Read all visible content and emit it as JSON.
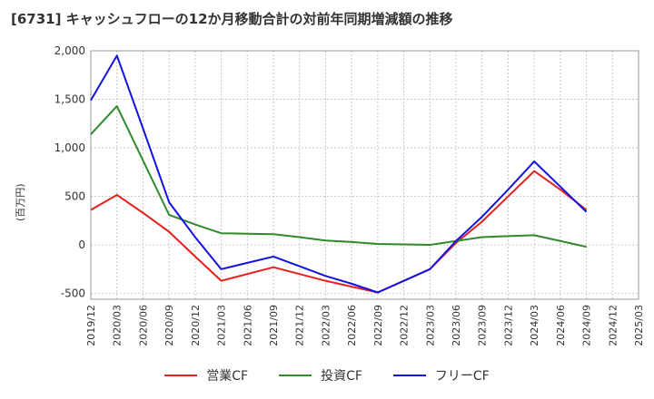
{
  "chart_data": {
    "type": "line",
    "title": "[6731]  キャッシュフローの12か月移動合計の対前年同期増減額の推移",
    "ylabel": "(百万円)",
    "xlabel": "",
    "ylim": [
      -560,
      2000
    ],
    "yticks": [
      -500,
      0,
      500,
      1000,
      1500,
      2000
    ],
    "ytick_labels": [
      "-500",
      "0",
      "500",
      "1,000",
      "1,500",
      "2,000"
    ],
    "categories": [
      "2019/12",
      "2020/03",
      "2020/06",
      "2020/09",
      "2020/12",
      "2021/03",
      "2021/06",
      "2021/09",
      "2021/12",
      "2022/03",
      "2022/06",
      "2022/09",
      "2022/12",
      "2023/03",
      "2023/06",
      "2023/09",
      "2023/12",
      "2024/03",
      "2024/06",
      "2024/09",
      "2024/12",
      "2025/03"
    ],
    "series": [
      {
        "name": "営業CF",
        "color": "#e8201d",
        "values": [
          360,
          515,
          330,
          135,
          -120,
          -370,
          -300,
          -230,
          -300,
          -370,
          -430,
          -490,
          -370,
          -250,
          20,
          240,
          500,
          760,
          570,
          360,
          null,
          null
        ]
      },
      {
        "name": "投資CF",
        "color": "#2f8a2b",
        "values": [
          1140,
          1430,
          870,
          310,
          210,
          120,
          115,
          110,
          80,
          45,
          30,
          10,
          5,
          0,
          40,
          80,
          90,
          100,
          40,
          -20,
          null,
          null
        ]
      },
      {
        "name": "フリーCF",
        "color": "#1313e0",
        "values": [
          1490,
          1950,
          1200,
          440,
          80,
          -250,
          -185,
          -120,
          -220,
          -320,
          -400,
          -490,
          -370,
          -250,
          40,
          290,
          570,
          860,
          600,
          340,
          null,
          null
        ]
      }
    ]
  }
}
